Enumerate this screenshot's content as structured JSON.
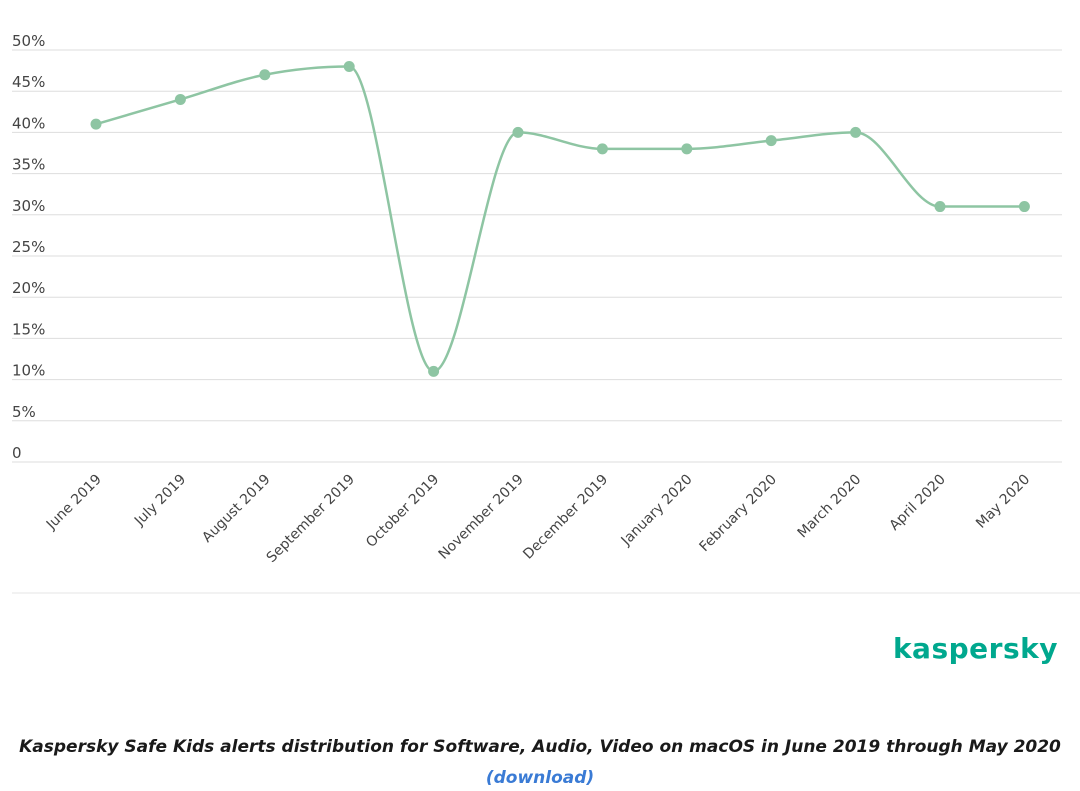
{
  "chart_data": {
    "type": "line",
    "categories": [
      "June 2019",
      "July 2019",
      "August 2019",
      "September 2019",
      "October 2019",
      "November 2019",
      "December 2019",
      "January 2020",
      "February 2020",
      "March 2020",
      "April 2020",
      "May 2020"
    ],
    "series": [
      {
        "values": [
          41,
          44,
          47,
          48,
          11,
          40,
          38,
          38,
          39,
          40,
          31,
          31
        ]
      }
    ],
    "y_ticks": [
      "0",
      "5%",
      "10%",
      "15%",
      "20%",
      "25%",
      "30%",
      "35%",
      "40%",
      "45%",
      "50%"
    ],
    "ylim": [
      0,
      50
    ],
    "grid": true,
    "smooth": true,
    "line_color": "#8ec5a3",
    "title": "",
    "xlabel": "",
    "ylabel": ""
  },
  "brand": {
    "name": "kaspersky",
    "color": "#00a88e"
  },
  "caption": {
    "text": "Kaspersky Safe Kids alerts distribution for Software, Audio, Video on macOS in June 2019 through May 2020",
    "download_label": "(download)",
    "link_color": "#3a7bd5"
  }
}
